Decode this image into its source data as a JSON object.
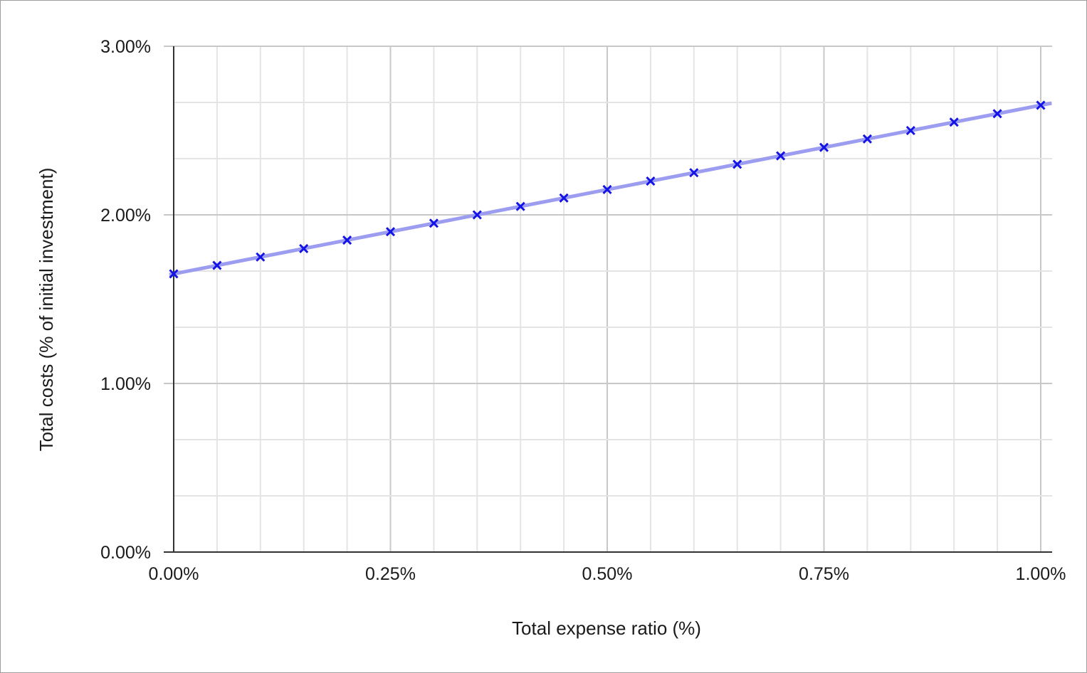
{
  "chart_data": {
    "type": "line",
    "title": "",
    "xlabel": "Total expense ratio (%)",
    "ylabel": "Total costs (% of initial investment)",
    "xlim": [
      0,
      1.0
    ],
    "ylim": [
      0,
      3.0
    ],
    "x_ticks": [
      "0.00%",
      "0.25%",
      "0.50%",
      "0.75%",
      "1.00%"
    ],
    "y_ticks": [
      "0.00%",
      "1.00%",
      "2.00%",
      "3.00%"
    ],
    "grid": true,
    "legend": "none",
    "marker": "x",
    "colors": {
      "line": "#9c9cf0",
      "marker": "#1414e6",
      "axis": "#333333",
      "grid_major": "#c8c8c8",
      "grid_minor": "#e4e4e4"
    },
    "series": [
      {
        "x": [
          0.0,
          0.05,
          0.1,
          0.15,
          0.2,
          0.25,
          0.3,
          0.35,
          0.4,
          0.45,
          0.5,
          0.55,
          0.6,
          0.65,
          0.7,
          0.75,
          0.8,
          0.85,
          0.9,
          0.95,
          1.0
        ],
        "values": [
          1.65,
          1.7,
          1.75,
          1.8,
          1.85,
          1.9,
          1.95,
          2.0,
          2.05,
          2.1,
          2.15,
          2.2,
          2.25,
          2.3,
          2.35,
          2.4,
          2.45,
          2.5,
          2.55,
          2.6,
          2.65
        ]
      }
    ]
  }
}
